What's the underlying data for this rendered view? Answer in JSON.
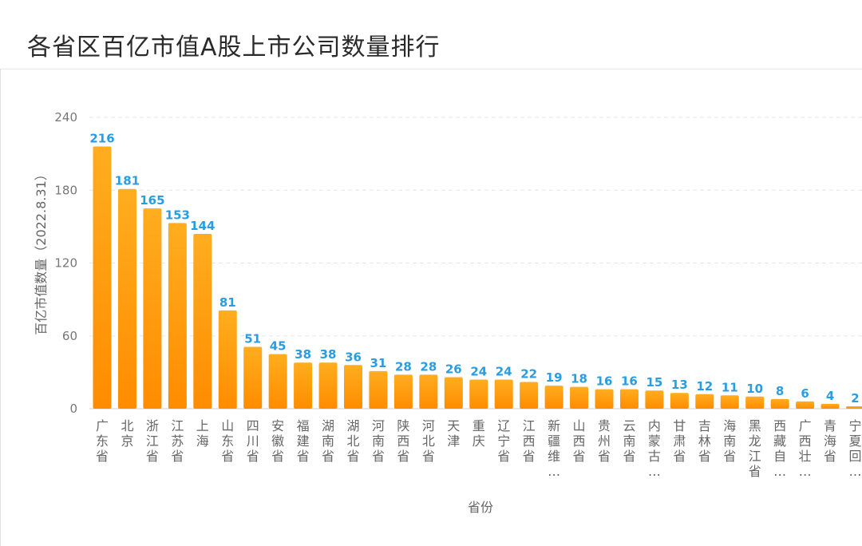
{
  "header": {
    "title": "各省区百亿市值A股上市公司数量排行"
  },
  "chart_data": {
    "type": "bar",
    "title": "各省区百亿市值A股上市公司数量排行",
    "xlabel": "省份",
    "ylabel": "百亿市值数量（2022.8.31）",
    "ylim": [
      0,
      240
    ],
    "yticks": [
      0,
      60,
      120,
      180,
      240
    ],
    "grid": true,
    "bar_color": "#ff9a00",
    "label_color": "#2a9de0",
    "categories": [
      "广东省",
      "北京",
      "浙江省",
      "江苏省",
      "上海",
      "山东省",
      "四川省",
      "安徽省",
      "福建省",
      "湖南省",
      "湖北省",
      "河南省",
      "陕西省",
      "河北省",
      "天津",
      "重庆",
      "辽宁省",
      "江西省",
      "新疆维…",
      "山西省",
      "贵州省",
      "云南省",
      "内蒙古…",
      "甘肃省",
      "吉林省",
      "海南省",
      "黑龙江省",
      "西藏自…",
      "广西壮…",
      "青海省",
      "宁夏回…"
    ],
    "values": [
      216,
      181,
      165,
      153,
      144,
      81,
      51,
      45,
      38,
      38,
      36,
      31,
      28,
      28,
      26,
      24,
      24,
      22,
      19,
      18,
      16,
      16,
      15,
      13,
      12,
      11,
      10,
      8,
      6,
      4,
      2
    ]
  }
}
